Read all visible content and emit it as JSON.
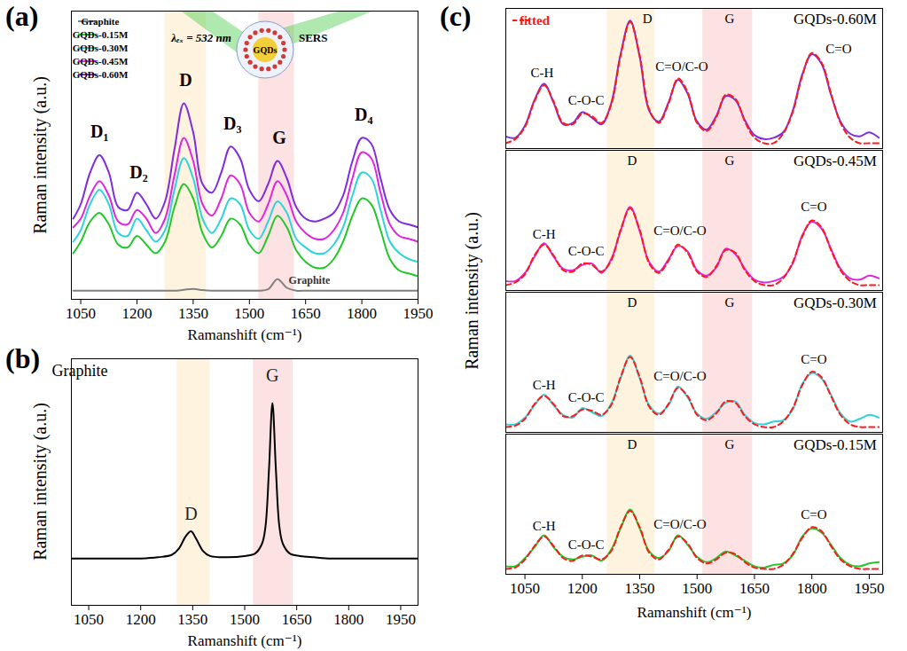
{
  "chart_data": [
    {
      "panel": "(a)",
      "type": "line",
      "x_label": "Ramanshift (cm⁻¹)",
      "y_label": "Raman intensity (a.u.)",
      "x": [
        1030,
        1050,
        1075,
        1100,
        1125,
        1150,
        1175,
        1200,
        1225,
        1250,
        1275,
        1300,
        1325,
        1350,
        1375,
        1400,
        1425,
        1450,
        1475,
        1500,
        1525,
        1550,
        1575,
        1600,
        1625,
        1650,
        1675,
        1700,
        1725,
        1750,
        1775,
        1800,
        1825,
        1850,
        1875,
        1900,
        1925,
        1950
      ],
      "xlim": [
        1025,
        1950
      ],
      "xticks": [
        1050,
        1200,
        1350,
        1500,
        1650,
        1800,
        1950
      ],
      "ylim": [
        0,
        100
      ],
      "yticks": [],
      "tick_labels": "x",
      "legend": "top-left",
      "series": [
        {
          "name": "Graphite",
          "color": "#808080",
          "values": [
            3,
            3,
            3,
            3,
            3,
            3,
            3,
            3,
            3,
            3,
            3,
            3,
            3.3,
            3.6,
            3.2,
            3,
            3,
            3,
            3,
            3,
            3,
            3.5,
            7,
            4,
            3,
            3,
            3,
            3,
            3,
            3,
            3,
            3,
            3,
            3,
            3,
            3,
            3,
            3
          ]
        },
        {
          "name": "GQDs-0.15M",
          "color": "#22c82a",
          "values": [
            16,
            20,
            27,
            30,
            26,
            19,
            18,
            22,
            19,
            16,
            20,
            32,
            40,
            35,
            23,
            18,
            22,
            28,
            26,
            19,
            16,
            22,
            29,
            25,
            17,
            13,
            11,
            11,
            14,
            20,
            29,
            35,
            33,
            24,
            14,
            10,
            9,
            8
          ]
        },
        {
          "name": "GQDs-0.30M",
          "color": "#2ed3dc",
          "values": [
            20,
            24,
            33,
            38,
            33,
            23,
            22,
            28,
            24,
            20,
            24,
            38,
            49,
            42,
            28,
            23,
            28,
            35,
            33,
            24,
            21,
            27,
            34,
            30,
            21,
            18,
            16,
            16,
            19,
            25,
            36,
            44,
            42,
            31,
            20,
            16,
            14,
            13
          ]
        },
        {
          "name": "GQDs-0.45M",
          "color": "#e025e0",
          "values": [
            25,
            28,
            36,
            41,
            36,
            27,
            26,
            31,
            28,
            23,
            28,
            43,
            56,
            48,
            33,
            29,
            35,
            43,
            40,
            30,
            27,
            33,
            41,
            36,
            27,
            23,
            21,
            21,
            24,
            30,
            42,
            51,
            49,
            37,
            26,
            22,
            21,
            20
          ]
        },
        {
          "name": "GQDs-0.60M",
          "color": "#7f2be0",
          "values": [
            28,
            33,
            44,
            50,
            44,
            32,
            31,
            37,
            33,
            28,
            34,
            52,
            68,
            58,
            40,
            37,
            44,
            53,
            49,
            38,
            34,
            40,
            48,
            42,
            32,
            28,
            27,
            28,
            30,
            36,
            48,
            56,
            54,
            42,
            31,
            27,
            26,
            25
          ]
        }
      ],
      "bands": [
        {
          "x0": 1275,
          "x1": 1385,
          "color": "#fdf3de"
        },
        {
          "x0": 1525,
          "x1": 1620,
          "color": "#fce2e2"
        }
      ],
      "annotations": [
        {
          "text": "D₁",
          "x": 1100,
          "y": 58
        },
        {
          "text": "D₂",
          "x": 1205,
          "y": 44
        },
        {
          "text": "D",
          "x": 1330,
          "y": 76
        },
        {
          "text": "D₃",
          "x": 1455,
          "y": 61
        },
        {
          "text": "G",
          "x": 1580,
          "y": 56
        },
        {
          "text": "D₄",
          "x": 1805,
          "y": 64
        }
      ],
      "series_label": {
        "text": "Graphite",
        "x": 1660,
        "y": 6.5
      },
      "inset": {
        "center": "GQDs",
        "excitation": "λₑₓ = 532 nm",
        "scattered": "SERS"
      }
    },
    {
      "panel": "(b)",
      "type": "line",
      "title": "Graphite",
      "x_label": "Ramanshift (cm⁻¹)",
      "y_label": "Raman intensity (a.u.)",
      "x": [
        1000,
        1050,
        1100,
        1150,
        1200,
        1250,
        1290,
        1310,
        1330,
        1345,
        1360,
        1380,
        1400,
        1450,
        1500,
        1530,
        1550,
        1560,
        1570,
        1580,
        1590,
        1600,
        1610,
        1630,
        1660,
        1700,
        1750,
        1800,
        1850,
        1900,
        1950,
        2000
      ],
      "xlim": [
        1000,
        2000
      ],
      "xticks": [
        1050,
        1200,
        1350,
        1500,
        1650,
        1800,
        1950
      ],
      "ylim": [
        0,
        100
      ],
      "yticks": [],
      "tick_labels": "x",
      "series": [
        {
          "color": "#000000",
          "values": [
            19,
            19,
            19,
            19,
            19,
            19.5,
            20.5,
            23,
            28,
            30,
            27,
            22,
            20,
            19.5,
            20,
            21,
            25,
            32,
            55,
            82,
            55,
            32,
            25,
            21,
            20,
            19.5,
            19,
            19,
            19,
            19,
            19,
            19
          ]
        }
      ],
      "bands": [
        {
          "x0": 1305,
          "x1": 1400,
          "color": "#fdf3de"
        },
        {
          "x0": 1525,
          "x1": 1640,
          "color": "#fce2e2"
        }
      ],
      "annotations": [
        {
          "text": "D",
          "x": 1345,
          "y": 37
        },
        {
          "text": "G",
          "x": 1580,
          "y": 93
        }
      ]
    },
    {
      "panel": "(c)",
      "type": "line",
      "x_label": "Ramanshift (cm⁻¹)",
      "y_label": "Raman intensity (a.u.)",
      "x": [
        1000,
        1025,
        1050,
        1075,
        1100,
        1125,
        1150,
        1175,
        1200,
        1225,
        1250,
        1275,
        1300,
        1325,
        1350,
        1375,
        1400,
        1425,
        1450,
        1475,
        1500,
        1525,
        1550,
        1575,
        1600,
        1625,
        1650,
        1675,
        1700,
        1725,
        1750,
        1775,
        1800,
        1825,
        1850,
        1875,
        1900,
        1925,
        1950,
        1975
      ],
      "xlim": [
        1000,
        1985
      ],
      "xticks": [
        1050,
        1200,
        1350,
        1500,
        1650,
        1800,
        1950
      ],
      "ylim": [
        -4,
        100
      ],
      "yticks": [],
      "tick_labels": "x",
      "legend": "top-left",
      "fit": {
        "name": "fitted",
        "color": "#ff1a1a",
        "line_style": "dashed"
      },
      "bands": [
        {
          "x0": 1265,
          "x1": 1390,
          "color": "#fdf3de"
        },
        {
          "x0": 1515,
          "x1": 1645,
          "color": "#fce2e2"
        }
      ],
      "subplots": [
        {
          "title": "GQDs-0.60M",
          "color": "#7f2be0",
          "values": [
            5,
            4,
            13,
            32,
            44,
            30,
            14,
            15,
            23,
            19,
            14,
            29,
            66,
            91,
            64,
            24,
            16,
            30,
            47,
            37,
            16,
            10,
            20,
            35,
            32,
            17,
            6,
            3,
            4,
            8,
            24,
            51,
            66,
            59,
            36,
            16,
            7,
            5,
            8,
            4
          ],
          "fitted": [
            0,
            3,
            12,
            31,
            43,
            31,
            15,
            14,
            22,
            20,
            15,
            28,
            65,
            90,
            65,
            25,
            15,
            29,
            48,
            38,
            15,
            9,
            19,
            36,
            33,
            16,
            4,
            0,
            0,
            7,
            23,
            50,
            67,
            60,
            37,
            15,
            4,
            0,
            0,
            0
          ],
          "annotations": [
            {
              "text": "C-H",
              "x": 1095,
              "y": 52
            },
            {
              "text": "C-O-C",
              "x": 1210,
              "y": 32
            },
            {
              "text": "D",
              "x": 1370,
              "y": 92
            },
            {
              "text": "C=O/C-O",
              "x": 1460,
              "y": 57
            },
            {
              "text": "G",
              "x": 1585,
              "y": 92
            },
            {
              "text": "C=O",
              "x": 1870,
              "y": 70
            }
          ]
        },
        {
          "title": "GQDs-0.45M",
          "color": "#e025e0",
          "values": [
            3,
            3,
            9,
            21,
            31,
            21,
            12,
            11,
            15,
            16,
            9,
            19,
            40,
            58,
            40,
            17,
            10,
            19,
            29,
            25,
            11,
            7,
            13,
            27,
            23,
            12,
            4,
            2,
            3,
            6,
            16,
            37,
            47,
            42,
            27,
            12,
            5,
            4,
            7,
            5
          ],
          "fitted": [
            0,
            2,
            8,
            22,
            30,
            22,
            11,
            10,
            16,
            15,
            10,
            18,
            41,
            57,
            41,
            16,
            9,
            18,
            30,
            24,
            10,
            6,
            14,
            26,
            24,
            11,
            3,
            0,
            0,
            5,
            17,
            36,
            48,
            43,
            26,
            11,
            3,
            0,
            0,
            0
          ],
          "annotations": [
            {
              "text": "C-H",
              "x": 1100,
              "y": 38
            },
            {
              "text": "C-O-C",
              "x": 1210,
              "y": 25
            },
            {
              "text": "D",
              "x": 1330,
              "y": 92
            },
            {
              "text": "C=O/C-O",
              "x": 1455,
              "y": 40
            },
            {
              "text": "G",
              "x": 1585,
              "y": 92
            },
            {
              "text": "C=O",
              "x": 1805,
              "y": 58
            }
          ]
        },
        {
          "title": "GQDs-0.30M",
          "color": "#2ed3dc",
          "values": [
            2,
            2,
            7,
            16,
            24,
            16,
            9,
            7,
            14,
            11,
            8,
            17,
            36,
            53,
            36,
            16,
            10,
            16,
            30,
            22,
            10,
            6,
            11,
            18,
            19,
            9,
            3,
            2,
            4,
            5,
            13,
            32,
            40,
            36,
            24,
            10,
            4,
            6,
            9,
            7
          ],
          "fitted": [
            0,
            1,
            6,
            17,
            23,
            17,
            8,
            8,
            13,
            12,
            9,
            16,
            37,
            52,
            37,
            15,
            9,
            17,
            29,
            23,
            9,
            5,
            10,
            19,
            18,
            8,
            2,
            0,
            0,
            4,
            14,
            31,
            41,
            37,
            23,
            9,
            2,
            0,
            0,
            0
          ],
          "annotations": [
            {
              "text": "C-H",
              "x": 1100,
              "y": 31
            },
            {
              "text": "C-O-C",
              "x": 1210,
              "y": 22
            },
            {
              "text": "D",
              "x": 1330,
              "y": 92
            },
            {
              "text": "C=O/C-O",
              "x": 1455,
              "y": 38
            },
            {
              "text": "G",
              "x": 1585,
              "y": 92
            },
            {
              "text": "C=O",
              "x": 1805,
              "y": 50
            }
          ]
        },
        {
          "title": "GQDs-0.15M",
          "color": "#22c82a",
          "values": [
            2,
            2,
            8,
            16,
            25,
            16,
            9,
            7,
            9,
            10,
            6,
            14,
            30,
            44,
            30,
            13,
            8,
            13,
            25,
            18,
            9,
            5,
            8,
            13,
            10,
            6,
            2,
            1,
            3,
            4,
            10,
            24,
            30,
            27,
            18,
            8,
            3,
            2,
            4,
            5
          ],
          "fitted": [
            0,
            1,
            7,
            17,
            24,
            17,
            8,
            6,
            10,
            9,
            7,
            13,
            31,
            43,
            31,
            12,
            7,
            14,
            24,
            19,
            8,
            4,
            7,
            12,
            11,
            5,
            1,
            0,
            0,
            3,
            11,
            23,
            31,
            28,
            17,
            7,
            2,
            0,
            0,
            0
          ],
          "annotations": [
            {
              "text": "C-H",
              "x": 1100,
              "y": 32
            },
            {
              "text": "C-O-C",
              "x": 1210,
              "y": 18
            },
            {
              "text": "D",
              "x": 1330,
              "y": 92
            },
            {
              "text": "C=O/C-O",
              "x": 1455,
              "y": 33
            },
            {
              "text": "G",
              "x": 1585,
              "y": 92
            },
            {
              "text": "C=O",
              "x": 1805,
              "y": 40
            }
          ]
        }
      ]
    }
  ]
}
